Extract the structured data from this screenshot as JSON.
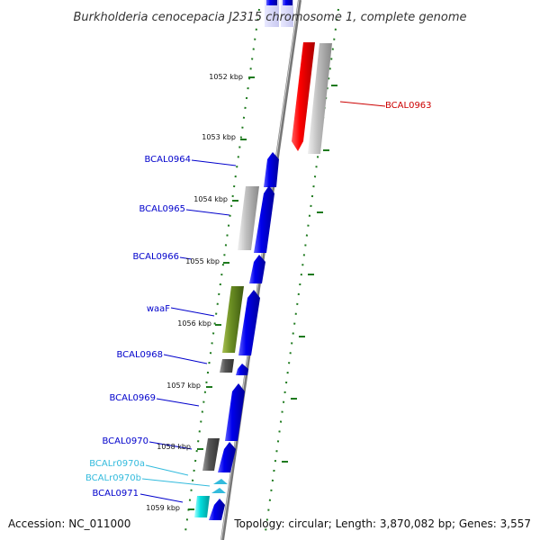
{
  "title": "Burkholderia cenocepacia J2315 chromosome 1, complete genome",
  "footer": {
    "accession": "Accession: NC_011000",
    "topology": "Topology: circular; Length: 3,870,082 bp; Genes: 3,557"
  },
  "colors": {
    "label_blue": "#0000cc",
    "label_red": "#cc0000",
    "label_cyan": "#33bbdd",
    "tick_green": "#1e7a1e",
    "cds_blue": "#0000ee",
    "cds_red": "#ff0000",
    "gray_feature": "#b0b0b0",
    "dark_feature": "#555555",
    "green_feature": "#6b8e23",
    "cyan_feature": "#00dddd",
    "backbone": "#888888"
  },
  "kbp_labels": [
    "1052 kbp",
    "1053 kbp",
    "1054 kbp",
    "1055 kbp",
    "1056 kbp",
    "1057 kbp",
    "1058 kbp",
    "1059 kbp"
  ],
  "genes": {
    "bcal0963": "BCAL0963",
    "bcal0964": "BCAL0964",
    "bcal0965": "BCAL0965",
    "bcal0966": "BCAL0966",
    "waaf": "waaF",
    "bcal0968": "BCAL0968",
    "bcal0969": "BCAL0969",
    "bcal0970": "BCAL0970",
    "bcalr0970a": "BCALr0970a",
    "bcalr0970b": "BCALr0970b",
    "bcal0971": "BCAL0971"
  }
}
